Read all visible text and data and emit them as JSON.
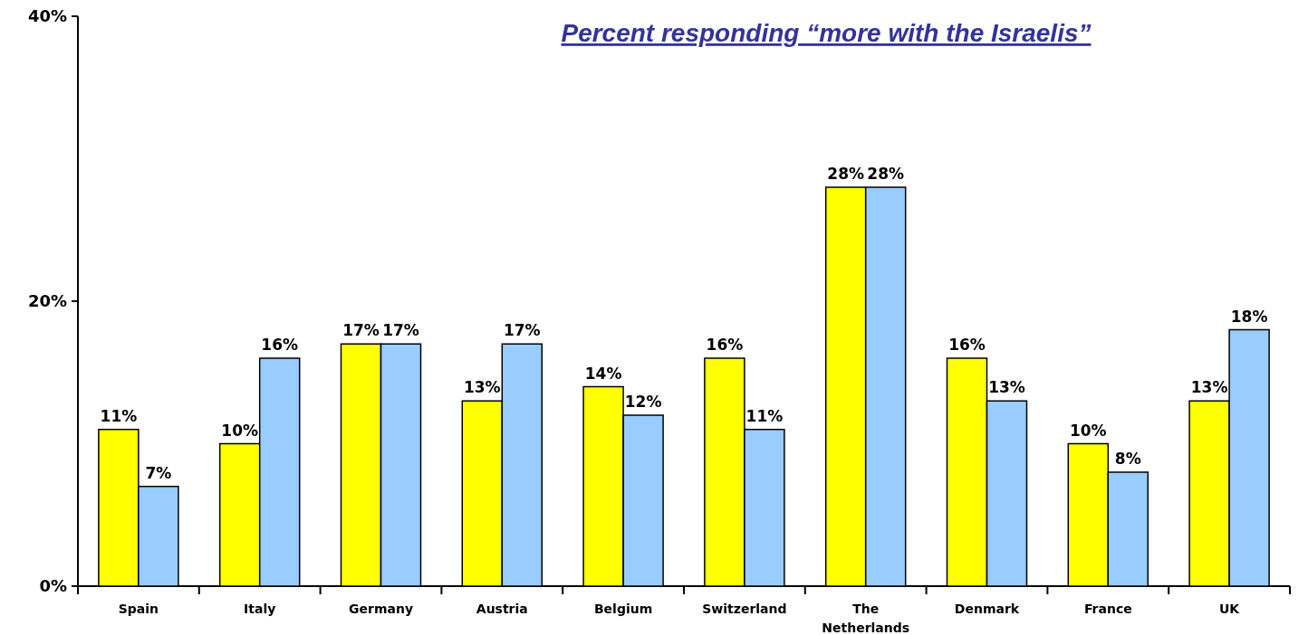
{
  "chart_data": {
    "type": "bar",
    "title": "Percent responding “more with the Israelis”",
    "categories": [
      "Spain",
      "Italy",
      "Germany",
      "Austria",
      "Belgium",
      "Switzerland",
      "The Netherlands",
      "Denmark",
      "France",
      "UK"
    ],
    "series": [
      {
        "color": "#ffff00",
        "values": [
          11,
          10,
          17,
          13,
          14,
          16,
          28,
          16,
          10,
          13
        ],
        "value_labels": [
          "11%",
          "10%",
          "17%",
          "13%",
          "14%",
          "16%",
          "28%",
          "16%",
          "10%",
          "13%"
        ]
      },
      {
        "color": "#99ccff",
        "values": [
          7,
          16,
          17,
          17,
          12,
          11,
          28,
          13,
          8,
          18
        ],
        "value_labels": [
          "7%",
          "16%",
          "17%",
          "17%",
          "12%",
          "11%",
          "28%",
          "13%",
          "8%",
          "18%"
        ]
      }
    ],
    "ylim": [
      0,
      40
    ],
    "yticks": [
      {
        "value": 0,
        "label": "0%"
      },
      {
        "value": 20,
        "label": "20%"
      },
      {
        "value": 40,
        "label": "40%"
      }
    ]
  }
}
